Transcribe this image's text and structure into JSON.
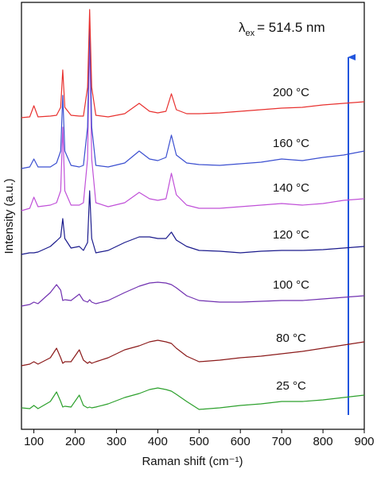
{
  "chart_data": {
    "type": "line",
    "x_label": "Raman shift (cm⁻¹)",
    "y_label": "Intensity (a.u.)",
    "annotation": {
      "symbol": "λ",
      "subscript": "ex",
      "text": "= 514.5 nm"
    },
    "x": [
      70,
      90,
      100,
      110,
      140,
      155,
      165,
      170,
      175,
      190,
      210,
      220,
      230,
      235,
      240,
      250,
      280,
      320,
      355,
      380,
      400,
      420,
      433,
      445,
      470,
      500,
      550,
      600,
      650,
      700,
      750,
      800,
      850,
      900
    ],
    "xlim": [
      70,
      900
    ],
    "xticks": [
      100,
      200,
      300,
      400,
      500,
      600,
      700,
      800,
      900
    ],
    "ylim": [
      0,
      537
    ],
    "series": [
      {
        "name": "25 °C",
        "color": "#2ca02c",
        "values": [
          27,
          26,
          30,
          26,
          35,
          47,
          35,
          28,
          29,
          28,
          43,
          30,
          27,
          28,
          27,
          28,
          32,
          40,
          45,
          50,
          52,
          50,
          48,
          44,
          35,
          25,
          27,
          30,
          32,
          35,
          35,
          37,
          40,
          43
        ]
      },
      {
        "name": "80 °C",
        "color": "#8b1a1a",
        "values": [
          80,
          82,
          85,
          82,
          90,
          102,
          90,
          83,
          85,
          85,
          100,
          87,
          83,
          85,
          83,
          85,
          90,
          100,
          105,
          110,
          112,
          110,
          108,
          102,
          92,
          85,
          87,
          90,
          92,
          95,
          98,
          102,
          106,
          110
        ]
      },
      {
        "name": "100 °C",
        "color": "#7030b0",
        "values": [
          155,
          157,
          160,
          158,
          172,
          182,
          175,
          162,
          163,
          162,
          170,
          162,
          160,
          163,
          160,
          158,
          162,
          172,
          180,
          184,
          185,
          184,
          182,
          178,
          168,
          162,
          160,
          160,
          161,
          162,
          162,
          164,
          166,
          168
        ]
      },
      {
        "name": "120 °C",
        "color": "#1a1a8c",
        "values": [
          220,
          222,
          222,
          223,
          230,
          237,
          242,
          265,
          240,
          228,
          230,
          225,
          235,
          300,
          240,
          222,
          225,
          235,
          242,
          242,
          240,
          240,
          248,
          238,
          230,
          225,
          224,
          222,
          224,
          225,
          225,
          226,
          228,
          230
        ]
      },
      {
        "name": "140 °C",
        "color": "#c050d8",
        "values": [
          275,
          278,
          292,
          280,
          282,
          285,
          300,
          380,
          300,
          282,
          282,
          285,
          340,
          495,
          340,
          285,
          280,
          285,
          298,
          290,
          288,
          290,
          322,
          295,
          282,
          278,
          278,
          280,
          282,
          284,
          282,
          284,
          288,
          290
        ]
      },
      {
        "name": "160 °C",
        "color": "#3b4fd0",
        "values": [
          328,
          330,
          340,
          330,
          330,
          335,
          350,
          420,
          350,
          332,
          330,
          332,
          380,
          515,
          380,
          332,
          330,
          335,
          350,
          340,
          338,
          342,
          370,
          345,
          335,
          333,
          332,
          334,
          336,
          340,
          338,
          342,
          345,
          350
        ]
      },
      {
        "name": "200 °C",
        "color": "#e8312f",
        "values": [
          392,
          393,
          407,
          393,
          394,
          395,
          405,
          452,
          405,
          395,
          394,
          394,
          430,
          528,
          430,
          395,
          393,
          397,
          410,
          400,
          398,
          400,
          422,
          402,
          397,
          397,
          398,
          400,
          402,
          404,
          405,
          408,
          410,
          412
        ]
      }
    ]
  }
}
